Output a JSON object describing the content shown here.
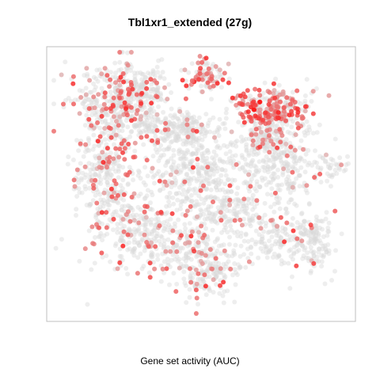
{
  "chart_data": {
    "type": "scatter",
    "title": "Tbl1xr1_extended (27g)",
    "xlabel": "Gene set activity (AUC)",
    "ylabel": "",
    "grid": false,
    "legend": "none",
    "color_low": "#d9d9d9",
    "color_high": "#ff0000",
    "clusters": [
      {
        "cx": 0.22,
        "cy": 0.2,
        "sx": 0.1,
        "sy": 0.1,
        "n": 420,
        "act": 0.22
      },
      {
        "cx": 0.17,
        "cy": 0.48,
        "sx": 0.07,
        "sy": 0.12,
        "n": 260,
        "act": 0.18
      },
      {
        "cx": 0.32,
        "cy": 0.68,
        "sx": 0.13,
        "sy": 0.1,
        "n": 380,
        "act": 0.15
      },
      {
        "cx": 0.52,
        "cy": 0.82,
        "sx": 0.08,
        "sy": 0.07,
        "n": 220,
        "act": 0.14
      },
      {
        "cx": 0.6,
        "cy": 0.6,
        "sx": 0.07,
        "sy": 0.08,
        "n": 160,
        "act": 0.08
      },
      {
        "cx": 0.48,
        "cy": 0.44,
        "sx": 0.1,
        "sy": 0.09,
        "n": 300,
        "act": 0.05
      },
      {
        "cx": 0.42,
        "cy": 0.29,
        "sx": 0.09,
        "sy": 0.04,
        "n": 200,
        "act": 0.05
      },
      {
        "cx": 0.3,
        "cy": 0.13,
        "sx": 0.05,
        "sy": 0.05,
        "n": 110,
        "act": 0.12
      },
      {
        "cx": 0.52,
        "cy": 0.09,
        "sx": 0.04,
        "sy": 0.04,
        "n": 90,
        "act": 0.45
      },
      {
        "cx": 0.74,
        "cy": 0.22,
        "sx": 0.08,
        "sy": 0.05,
        "n": 260,
        "act": 0.55
      },
      {
        "cx": 0.78,
        "cy": 0.45,
        "sx": 0.08,
        "sy": 0.11,
        "n": 260,
        "act": 0.04
      },
      {
        "cx": 0.88,
        "cy": 0.72,
        "sx": 0.05,
        "sy": 0.07,
        "n": 130,
        "act": 0.04
      },
      {
        "cx": 0.76,
        "cy": 0.72,
        "sx": 0.06,
        "sy": 0.06,
        "n": 120,
        "act": 0.06
      },
      {
        "cx": 0.7,
        "cy": 0.34,
        "sx": 0.06,
        "sy": 0.05,
        "n": 120,
        "act": 0.3
      },
      {
        "cx": 0.94,
        "cy": 0.44,
        "sx": 0.03,
        "sy": 0.03,
        "n": 35,
        "act": 0.18
      }
    ],
    "hotspots": [
      {
        "x": 0.68,
        "y": 0.22,
        "act": 1.0
      },
      {
        "x": 0.7,
        "y": 0.19,
        "act": 0.95
      },
      {
        "x": 0.64,
        "y": 0.2,
        "act": 0.7
      },
      {
        "x": 0.76,
        "y": 0.25,
        "act": 0.75
      },
      {
        "x": 0.8,
        "y": 0.24,
        "act": 0.8
      },
      {
        "x": 0.73,
        "y": 0.2,
        "act": 0.7
      },
      {
        "x": 0.71,
        "y": 0.26,
        "act": 0.7
      },
      {
        "x": 0.83,
        "y": 0.29,
        "act": 0.65
      },
      {
        "x": 0.15,
        "y": 0.34,
        "act": 0.85
      },
      {
        "x": 0.23,
        "y": 0.35,
        "act": 0.6
      },
      {
        "x": 0.24,
        "y": 0.41,
        "act": 0.5
      },
      {
        "x": 0.25,
        "y": 0.47,
        "act": 0.55
      },
      {
        "x": 0.22,
        "y": 0.28,
        "act": 0.5
      },
      {
        "x": 0.18,
        "y": 0.44,
        "act": 0.45
      },
      {
        "x": 0.62,
        "y": 0.43,
        "act": 0.45
      },
      {
        "x": 0.47,
        "y": 0.11,
        "act": 0.5
      },
      {
        "x": 0.58,
        "y": 0.08,
        "act": 0.5
      },
      {
        "x": 0.08,
        "y": 0.45,
        "act": 0.4
      },
      {
        "x": 0.6,
        "y": 0.83,
        "act": 0.45
      },
      {
        "x": 0.37,
        "y": 0.83,
        "act": 0.4
      }
    ]
  }
}
